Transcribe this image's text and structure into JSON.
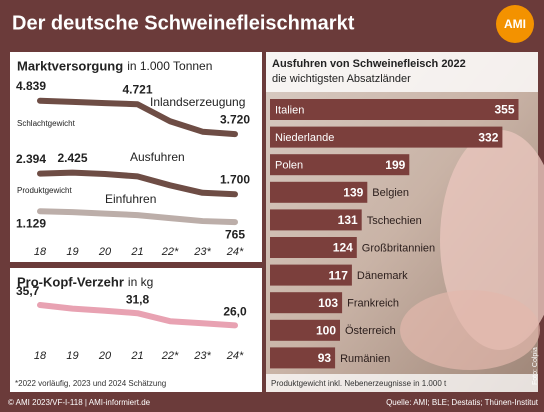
{
  "header": {
    "title": "Der deutsche Schweinefleischmarkt",
    "logo": "AMI"
  },
  "chart_data": [
    {
      "type": "line",
      "title": "Marktversorgung",
      "subtitle": "in 1.000 Tonnen",
      "categories": [
        "18",
        "19",
        "20",
        "21",
        "22*",
        "23*",
        "24*"
      ],
      "series": [
        {
          "name": "Inlandserzeugung",
          "note": "Schlachtgewicht",
          "color": "#6e4d45",
          "values": [
            4839,
            4800,
            4760,
            4721,
            4150,
            3800,
            3720
          ],
          "value_labels": [
            "4.839",
            null,
            null,
            "4.721",
            null,
            null,
            "3.720"
          ]
        },
        {
          "name": "Ausfuhren",
          "note": "Produktgewicht",
          "color": "#6e4d45",
          "values": [
            2394,
            2425,
            2380,
            2300,
            2000,
            1750,
            1700
          ],
          "value_labels": [
            "2.394",
            "2.425",
            null,
            null,
            null,
            null,
            "1.700"
          ]
        },
        {
          "name": "Einfuhren",
          "color": "#bcaea9",
          "values": [
            1129,
            1100,
            1050,
            1000,
            900,
            800,
            765
          ],
          "value_labels": [
            "1.129",
            null,
            null,
            null,
            null,
            null,
            "765"
          ]
        }
      ],
      "ylim": [
        500,
        5200
      ]
    },
    {
      "type": "line",
      "title": "Pro-Kopf-Verzehr",
      "subtitle": "in kg",
      "categories": [
        "18",
        "19",
        "20",
        "21",
        "22*",
        "23*",
        "24*"
      ],
      "series": [
        {
          "name": "Pro-Kopf-Verzehr",
          "color": "#e8a2b2",
          "values": [
            35.7,
            34.0,
            33.0,
            31.8,
            28.0,
            27.0,
            26.0
          ],
          "value_labels": [
            "35,7",
            null,
            null,
            "31,8",
            null,
            null,
            "26,0"
          ]
        }
      ],
      "ylim": [
        20,
        40
      ],
      "footnote": "*2022 vorläufig, 2023 und 2024 Schätzung"
    },
    {
      "type": "bar",
      "orientation": "horizontal",
      "title": "Ausfuhren von Schweinefleisch 2022",
      "subtitle": "die wichtigsten Absatzländer",
      "categories": [
        "Italien",
        "Niederlande",
        "Polen",
        "Belgien",
        "Tschechien",
        "Großbritannien",
        "Dänemark",
        "Frankreich",
        "Österreich",
        "Rumänien"
      ],
      "values": [
        355,
        332,
        199,
        139,
        131,
        124,
        117,
        103,
        100,
        93
      ],
      "color": "#7b3f3c",
      "xlim": [
        0,
        360
      ],
      "footnote": "Produktgewicht inkl. Nebenerzeugnisse in 1.000 t"
    }
  ],
  "footer": {
    "copyright": "© AMI 2023/VF-I-118 | AMI-informiert.de",
    "source": "Quelle: AMI; BLE; Destatis; Thünen-Institut",
    "photo_credit": "Foto: Colpia"
  }
}
